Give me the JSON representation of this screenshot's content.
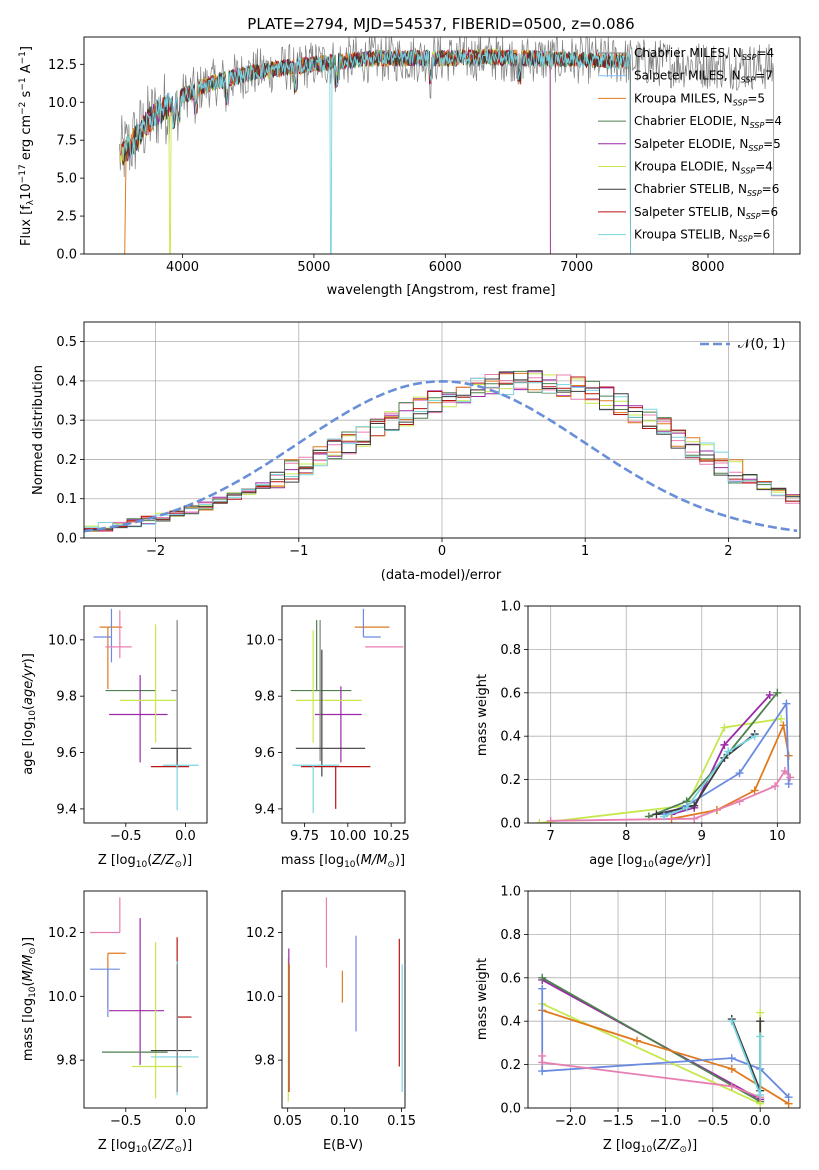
{
  "colors": {
    "chabrier_miles": "#7f7f7f",
    "salpeter_miles": "#7fbfff",
    "kroupa_miles": "#e07a1f",
    "chabrier_elodie": "#4f7f4f",
    "salpeter_elodie": "#9b29a8",
    "kroupa_elodie": "#c6e84d",
    "chabrier_stelib": "#3c3c3c",
    "salpeter_stelib": "#b81414",
    "kroupa_stelib": "#7ad4e0",
    "pink": "#e87fb3",
    "blue": "#6a8be0",
    "gauss": "#6a8fd8"
  },
  "chart_data": [
    {
      "id": "spectrum",
      "type": "line",
      "title": "PLATE=2794, MJD=54537, FIBERID=0500, z=0.086",
      "xlabel": "wavelength [Angstrom, rest frame]",
      "ylabel": "Flux [f_λ 10^-17 erg cm^-2 s^-1 A^-1]",
      "xlim": [
        3250,
        8700
      ],
      "ylim": [
        0,
        14.3
      ],
      "xticks": [
        "4000",
        "5000",
        "6000",
        "7000",
        "8000"
      ],
      "yticks": [
        "0.0",
        "2.5",
        "5.0",
        "7.5",
        "10.0",
        "12.5"
      ],
      "legend_position": "upper right",
      "legend": [
        "Chabrier MILES, N_SSP=4",
        "Salpeter MILES, N_SSP=7",
        "Kroupa MILES, N_SSP=5",
        "Chabrier ELODIE, N_SSP=4",
        "Salpeter ELODIE, N_SSP=5",
        "Kroupa ELODIE, N_SSP=4",
        "Chabrier STELIB, N_SSP=6",
        "Salpeter STELIB, N_SSP=6",
        "Kroupa STELIB, N_SSP=6"
      ],
      "continuum": {
        "x": [
          3500,
          3600,
          3700,
          3800,
          3900,
          4000,
          4200,
          4500,
          4800,
          5000,
          5200,
          5500,
          5800,
          6000,
          6300,
          6600,
          7000,
          7400,
          7800,
          8200,
          8500
        ],
        "y": [
          6.3,
          7.1,
          8.3,
          9.3,
          9.8,
          10.4,
          11.2,
          11.9,
          12.3,
          12.5,
          12.7,
          12.9,
          12.9,
          12.9,
          13.0,
          12.9,
          12.8,
          12.7,
          12.5,
          12.4,
          12.3
        ]
      },
      "grid": false
    },
    {
      "id": "residuals",
      "type": "step",
      "xlabel": "(data-model)/error",
      "ylabel": "Normed distribution",
      "xlim": [
        -2.5,
        2.5
      ],
      "ylim": [
        0,
        0.55
      ],
      "xticks": [
        "−2",
        "−1",
        "0",
        "1",
        "2"
      ],
      "yticks": [
        "0.0",
        "0.1",
        "0.2",
        "0.3",
        "0.4",
        "0.5"
      ],
      "legend_label": "𝒩(0, 1)",
      "legend_position": "upper right",
      "bin_edges_start": -2.5,
      "bin_width": 0.1,
      "base_hist": [
        0.02,
        0.028,
        0.033,
        0.038,
        0.044,
        0.052,
        0.06,
        0.07,
        0.082,
        0.094,
        0.108,
        0.122,
        0.137,
        0.153,
        0.17,
        0.188,
        0.206,
        0.225,
        0.244,
        0.262,
        0.28,
        0.298,
        0.315,
        0.332,
        0.347,
        0.36,
        0.372,
        0.382,
        0.39,
        0.395,
        0.398,
        0.398,
        0.396,
        0.39,
        0.381,
        0.37,
        0.356,
        0.34,
        0.321,
        0.3,
        0.278,
        0.256,
        0.234,
        0.212,
        0.19,
        0.17,
        0.15,
        0.132,
        0.115,
        0.1
      ],
      "grid": true
    },
    {
      "id": "age_vs_Z",
      "type": "errorbar",
      "xlabel": "Z [log10(Z/Z_⊙)]",
      "ylabel": "age  [log10(age/yr)]",
      "xlim": [
        -0.85,
        0.18
      ],
      "ylim": [
        9.35,
        10.12
      ],
      "xticks": [
        "−0.5",
        "0.0"
      ],
      "yticks": [
        "9.4",
        "9.6",
        "9.8",
        "10.0"
      ],
      "points": [
        {
          "x": -0.65,
          "y": 10.045,
          "xerr": [
            0.07,
            0.12
          ],
          "yerr": [
            0.22,
            0.0
          ],
          "c": "kroupa_miles"
        },
        {
          "x": -0.62,
          "y": 10.01,
          "xerr": [
            0.15,
            0.0
          ],
          "yerr": [
            0.09,
            0.1
          ],
          "c": "blue"
        },
        {
          "x": -0.55,
          "y": 9.975,
          "xerr": [
            0.12,
            0.1
          ],
          "yerr": [
            0.04,
            0.13
          ],
          "c": "pink"
        },
        {
          "x": -0.45,
          "y": 9.82,
          "xerr": [
            0.22,
            0.2
          ],
          "yerr": [
            0.0,
            0.0
          ],
          "c": "chabrier_elodie"
        },
        {
          "x": -0.38,
          "y": 9.735,
          "xerr": [
            0.26,
            0.23
          ],
          "yerr": [
            0.17,
            0.14
          ],
          "c": "salpeter_elodie"
        },
        {
          "x": -0.25,
          "y": 9.785,
          "xerr": [
            0.3,
            0.17
          ],
          "yerr": [
            0.15,
            0.27
          ],
          "c": "kroupa_elodie"
        },
        {
          "x": -0.07,
          "y": 9.82,
          "xerr": [
            0.05,
            0.0
          ],
          "yerr": [
            0.25,
            0.25
          ],
          "c": "chabrier_miles"
        },
        {
          "x": -0.07,
          "y": 9.615,
          "xerr": [
            0.22,
            0.12
          ],
          "yerr": [
            0.07,
            0.0
          ],
          "c": "chabrier_stelib"
        },
        {
          "x": -0.07,
          "y": 9.55,
          "xerr": [
            0.22,
            0.1
          ],
          "yerr": [
            0.0,
            0.0
          ],
          "c": "salpeter_stelib"
        },
        {
          "x": -0.07,
          "y": 9.555,
          "xerr": [
            0.12,
            0.18
          ],
          "yerr": [
            0.16,
            0.0
          ],
          "c": "kroupa_stelib"
        }
      ],
      "grid": false
    },
    {
      "id": "age_vs_mass",
      "type": "errorbar",
      "xlabel": "mass [log10(M/M_⊙)]",
      "ylabel": "",
      "xlim": [
        9.62,
        10.33
      ],
      "ylim": [
        9.35,
        10.12
      ],
      "xticks": [
        "9.75",
        "10.00",
        "10.25"
      ],
      "yticks": [
        "9.4",
        "9.6",
        "9.8",
        "10.0"
      ],
      "points": [
        {
          "x": 10.14,
          "y": 10.045,
          "xerr": [
            0.1,
            0.1
          ],
          "yerr": [
            0.0,
            0.0
          ],
          "c": "kroupa_miles"
        },
        {
          "x": 10.09,
          "y": 10.01,
          "xerr": [
            0.0,
            0.1
          ],
          "yerr": [
            0.0,
            0.1
          ],
          "c": "blue"
        },
        {
          "x": 10.2,
          "y": 9.975,
          "xerr": [
            0.1,
            0.12
          ],
          "yerr": [
            0.0,
            0.0
          ],
          "c": "pink"
        },
        {
          "x": 9.82,
          "y": 9.82,
          "xerr": [
            0.15,
            0.2
          ],
          "yerr": [
            0.0,
            0.25
          ],
          "c": "chabrier_elodie"
        },
        {
          "x": 9.96,
          "y": 9.735,
          "xerr": [
            0.15,
            0.12
          ],
          "yerr": [
            0.17,
            0.1
          ],
          "c": "salpeter_elodie"
        },
        {
          "x": 9.8,
          "y": 9.785,
          "xerr": [
            0.1,
            0.28
          ],
          "yerr": [
            0.15,
            0.25
          ],
          "c": "kroupa_elodie"
        },
        {
          "x": 9.84,
          "y": 9.82,
          "xerr": [
            0.0,
            0.0
          ],
          "yerr": [
            0.25,
            0.25
          ],
          "c": "chabrier_miles"
        },
        {
          "x": 9.85,
          "y": 9.615,
          "xerr": [
            0.15,
            0.25
          ],
          "yerr": [
            0.1,
            0.35
          ],
          "c": "chabrier_stelib"
        },
        {
          "x": 9.93,
          "y": 9.55,
          "xerr": [
            0.2,
            0.2
          ],
          "yerr": [
            0.15,
            0.0
          ],
          "c": "salpeter_stelib"
        },
        {
          "x": 9.8,
          "y": 9.555,
          "xerr": [
            0.12,
            0.15
          ],
          "yerr": [
            0.17,
            0.0
          ],
          "c": "kroupa_stelib"
        }
      ],
      "grid": false
    },
    {
      "id": "massweight_vs_age",
      "type": "line",
      "xlabel": "age  [log10(age/yr)]",
      "ylabel": "mass weight",
      "xlim": [
        6.7,
        10.3
      ],
      "ylim": [
        0,
        1.0
      ],
      "xticks": [
        "7",
        "8",
        "9",
        "10"
      ],
      "yticks": [
        "0.0",
        "0.2",
        "0.4",
        "0.6",
        "0.8",
        "1.0"
      ],
      "series": [
        {
          "c": "kroupa_elodie",
          "x": [
            6.85,
            8.8,
            9.3,
            10.05
          ],
          "y": [
            0.0,
            0.08,
            0.44,
            0.48
          ]
        },
        {
          "c": "salpeter_elodie",
          "x": [
            8.6,
            8.9,
            9.3,
            9.9
          ],
          "y": [
            0.04,
            0.07,
            0.36,
            0.59
          ]
        },
        {
          "c": "chabrier_elodie",
          "x": [
            8.3,
            8.8,
            9.3,
            10.0
          ],
          "y": [
            0.03,
            0.1,
            0.3,
            0.6
          ]
        },
        {
          "c": "kroupa_miles",
          "x": [
            8.6,
            9.2,
            9.7,
            10.08,
            10.15
          ],
          "y": [
            0.02,
            0.06,
            0.15,
            0.45,
            0.31
          ]
        },
        {
          "c": "blue",
          "x": [
            8.5,
            8.8,
            9.5,
            10.12,
            10.15
          ],
          "y": [
            0.04,
            0.08,
            0.23,
            0.55,
            0.18
          ]
        },
        {
          "c": "pink",
          "x": [
            7.0,
            8.9,
            9.5,
            9.97,
            10.1,
            10.17
          ],
          "y": [
            0.01,
            0.02,
            0.1,
            0.17,
            0.24,
            0.21
          ]
        },
        {
          "c": "chabrier_stelib",
          "x": [
            8.4,
            8.9,
            9.3,
            9.7
          ],
          "y": [
            0.04,
            0.08,
            0.3,
            0.41
          ]
        },
        {
          "c": "kroupa_stelib",
          "x": [
            8.5,
            8.8,
            9.35,
            9.7
          ],
          "y": [
            0.03,
            0.07,
            0.33,
            0.4
          ]
        }
      ],
      "grid": true
    },
    {
      "id": "mass_vs_Z",
      "type": "errorbar",
      "xlabel": "Z [log10(Z/Z_⊙)]",
      "ylabel": "mass [log10(M/M_⊙)]",
      "xlim": [
        -0.85,
        0.18
      ],
      "ylim": [
        9.65,
        10.33
      ],
      "xticks": [
        "−0.5",
        "0.0"
      ],
      "yticks": [
        "9.8",
        "10.0",
        "10.2"
      ],
      "points": [
        {
          "x": -0.55,
          "y": 10.2,
          "xerr": [
            0.25,
            0.0
          ],
          "yerr": [
            0.0,
            0.11
          ],
          "c": "pink"
        },
        {
          "x": -0.65,
          "y": 10.135,
          "xerr": [
            0.0,
            0.15
          ],
          "yerr": [
            0.17,
            0.0
          ],
          "c": "kroupa_miles"
        },
        {
          "x": -0.65,
          "y": 10.085,
          "xerr": [
            0.15,
            0.1
          ],
          "yerr": [
            0.15,
            0.0
          ],
          "c": "blue"
        },
        {
          "x": -0.38,
          "y": 9.955,
          "xerr": [
            0.26,
            0.2
          ],
          "yerr": [
            0.17,
            0.29
          ],
          "c": "salpeter_elodie"
        },
        {
          "x": -0.25,
          "y": 9.78,
          "xerr": [
            0.2,
            0.22
          ],
          "yerr": [
            0.1,
            0.39
          ],
          "c": "kroupa_elodie"
        },
        {
          "x": -0.45,
          "y": 9.825,
          "xerr": [
            0.25,
            0.3
          ],
          "yerr": [
            0.0,
            0.0
          ],
          "c": "chabrier_elodie"
        },
        {
          "x": -0.07,
          "y": 9.83,
          "xerr": [
            0.22,
            0.12
          ],
          "yerr": [
            0.0,
            0.28
          ],
          "c": "chabrier_stelib"
        },
        {
          "x": -0.07,
          "y": 9.935,
          "xerr": [
            0.0,
            0.12
          ],
          "yerr": [
            0.2,
            0.25
          ],
          "c": "salpeter_stelib"
        },
        {
          "x": -0.07,
          "y": 9.81,
          "xerr": [
            0.22,
            0.18
          ],
          "yerr": [
            0.12,
            0.3
          ],
          "c": "kroupa_stelib"
        },
        {
          "x": -0.07,
          "y": 9.9,
          "xerr": [
            0.0,
            0.0
          ],
          "yerr": [
            0.2,
            0.2
          ],
          "c": "chabrier_miles"
        }
      ],
      "grid": false
    },
    {
      "id": "mass_vs_EBV",
      "type": "errorbar",
      "xlabel": "E(B-V)",
      "ylabel": "",
      "xlim": [
        0.045,
        0.153
      ],
      "ylim": [
        9.65,
        10.33
      ],
      "xticks": [
        "0.05",
        "0.10",
        "0.15"
      ],
      "yticks": [
        "9.8",
        "10.0",
        "10.2"
      ],
      "points": [
        {
          "x": 0.0505,
          "y": 9.82,
          "xerr": [
            0,
            0
          ],
          "yerr": [
            0.15,
            0.3
          ],
          "c": "kroupa_elodie"
        },
        {
          "x": 0.051,
          "y": 9.9,
          "xerr": [
            0,
            0
          ],
          "yerr": [
            0.2,
            0.25
          ],
          "c": "salpeter_elodie"
        },
        {
          "x": 0.0515,
          "y": 9.8,
          "xerr": [
            0,
            0
          ],
          "yerr": [
            0.1,
            0.3
          ],
          "c": "kroupa_miles"
        },
        {
          "x": 0.084,
          "y": 10.2,
          "xerr": [
            0,
            0
          ],
          "yerr": [
            0.11,
            0.11
          ],
          "c": "pink"
        },
        {
          "x": 0.098,
          "y": 10.08,
          "xerr": [
            0,
            0
          ],
          "yerr": [
            0.1,
            0.0
          ],
          "c": "kroupa_miles"
        },
        {
          "x": 0.11,
          "y": 10.04,
          "xerr": [
            0,
            0
          ],
          "yerr": [
            0.15,
            0.15
          ],
          "c": "blue"
        },
        {
          "x": 0.148,
          "y": 9.98,
          "xerr": [
            0,
            0
          ],
          "yerr": [
            0.2,
            0.2
          ],
          "c": "salpeter_stelib"
        },
        {
          "x": 0.1505,
          "y": 9.85,
          "xerr": [
            0,
            0
          ],
          "yerr": [
            0.15,
            0.25
          ],
          "c": "kroupa_stelib"
        }
      ],
      "grid": false
    },
    {
      "id": "massweight_vs_Z",
      "type": "line",
      "xlabel": "Z [log10(Z/Z_⊙)]",
      "ylabel": "mass weight",
      "xlim": [
        -2.45,
        0.42
      ],
      "ylim": [
        0,
        1.0
      ],
      "xticks": [
        "−2.0",
        "−1.5",
        "−1.0",
        "−0.5",
        "0.0"
      ],
      "yticks": [
        "0.0",
        "0.2",
        "0.4",
        "0.6",
        "0.8",
        "1.0"
      ],
      "series": [
        {
          "c": "salpeter_elodie",
          "x": [
            -2.3,
            0.0
          ],
          "y": [
            0.59,
            0.04
          ]
        },
        {
          "c": "chabrier_elodie",
          "x": [
            -2.3,
            0.0
          ],
          "y": [
            0.6,
            0.03
          ]
        },
        {
          "c": "kroupa_elodie",
          "x": [
            -2.3,
            0.0,
            0.0
          ],
          "y": [
            0.48,
            0.02,
            0.44
          ]
        },
        {
          "c": "kroupa_miles",
          "x": [
            -2.3,
            -1.3,
            -0.3,
            0.3
          ],
          "y": [
            0.45,
            0.31,
            0.18,
            0.02
          ]
        },
        {
          "c": "blue",
          "x": [
            -2.3,
            -2.3,
            -0.3,
            0.0,
            0.3
          ],
          "y": [
            0.55,
            0.17,
            0.23,
            0.18,
            0.05
          ]
        },
        {
          "c": "pink",
          "x": [
            -2.3,
            -2.3,
            -0.3,
            0.0
          ],
          "y": [
            0.24,
            0.21,
            0.1,
            0.05
          ]
        },
        {
          "c": "chabrier_stelib",
          "x": [
            -0.3,
            0.0,
            0.0
          ],
          "y": [
            0.41,
            0.08,
            0.4
          ]
        },
        {
          "c": "kroupa_stelib",
          "x": [
            -0.3,
            0.0,
            0.0
          ],
          "y": [
            0.4,
            0.06,
            0.33
          ]
        }
      ],
      "grid": true
    }
  ]
}
